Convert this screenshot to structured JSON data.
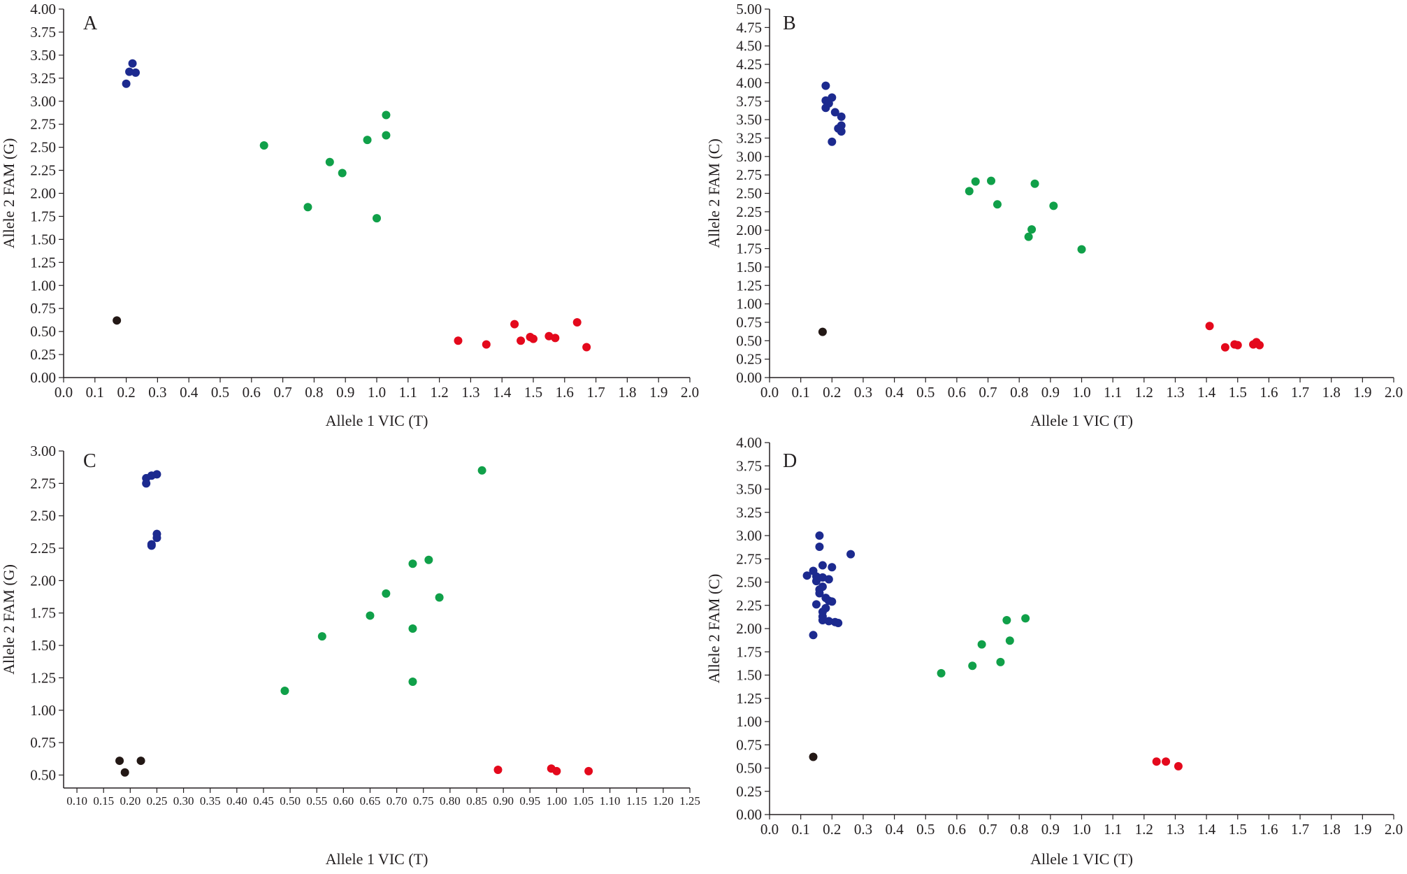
{
  "colors": {
    "axis": "#231f20",
    "blue": "#1c2a8f",
    "green": "#10a049",
    "red": "#e4091c",
    "black": "#231815"
  },
  "chart_data": [
    {
      "type": "scatter",
      "panel_label": "A",
      "xlabel": "Allele 1 VIC (T)",
      "ylabel": "Allele 2 FAM (G)",
      "xlim": [
        0,
        2.0
      ],
      "ylim": [
        0,
        4.0
      ],
      "xticks": [
        "0.0",
        "0.1",
        "0.2",
        "0.3",
        "0.4",
        "0.5",
        "0.6",
        "0.7",
        "0.8",
        "0.9",
        "1.0",
        "1.1",
        "1.2",
        "1.3",
        "1.4",
        "1.5",
        "1.6",
        "1.7",
        "1.8",
        "1.9",
        "2.0"
      ],
      "yticks": [
        "0.00",
        "0.25",
        "0.50",
        "0.75",
        "1.00",
        "1.25",
        "1.50",
        "1.75",
        "2.00",
        "2.25",
        "2.50",
        "2.75",
        "3.00",
        "3.25",
        "3.50",
        "3.75",
        "4.00"
      ],
      "series": [
        {
          "color": "blue",
          "points": [
            [
              0.22,
              3.41
            ],
            [
              0.21,
              3.32
            ],
            [
              0.23,
              3.31
            ],
            [
              0.2,
              3.19
            ]
          ]
        },
        {
          "color": "green",
          "points": [
            [
              1.03,
              2.85
            ],
            [
              1.03,
              2.63
            ],
            [
              0.97,
              2.58
            ],
            [
              0.64,
              2.52
            ],
            [
              0.85,
              2.34
            ],
            [
              0.89,
              2.22
            ],
            [
              0.78,
              1.85
            ],
            [
              1.0,
              1.73
            ]
          ]
        },
        {
          "color": "red",
          "points": [
            [
              1.26,
              0.4
            ],
            [
              1.35,
              0.36
            ],
            [
              1.44,
              0.58
            ],
            [
              1.46,
              0.4
            ],
            [
              1.49,
              0.44
            ],
            [
              1.5,
              0.42
            ],
            [
              1.55,
              0.45
            ],
            [
              1.57,
              0.43
            ],
            [
              1.64,
              0.6
            ],
            [
              1.67,
              0.33
            ]
          ]
        },
        {
          "color": "black",
          "points": [
            [
              0.17,
              0.62
            ]
          ]
        }
      ]
    },
    {
      "type": "scatter",
      "panel_label": "B",
      "xlabel": "Allele 1 VIC (T)",
      "ylabel": "Allele 2 FAM (C)",
      "xlim": [
        0,
        2.0
      ],
      "ylim": [
        0,
        5.0
      ],
      "xticks": [
        "0.0",
        "0.1",
        "0.2",
        "0.3",
        "0.4",
        "0.5",
        "0.6",
        "0.7",
        "0.8",
        "0.9",
        "1.0",
        "1.1",
        "1.2",
        "1.3",
        "1.4",
        "1.5",
        "1.6",
        "1.7",
        "1.8",
        "1.9",
        "2.0"
      ],
      "yticks": [
        "0.00",
        "0.25",
        "0.50",
        "0.75",
        "1.00",
        "1.25",
        "1.50",
        "1.75",
        "2.00",
        "2.25",
        "2.50",
        "2.75",
        "3.00",
        "3.25",
        "3.50",
        "3.75",
        "4.00",
        "4.25",
        "4.50",
        "4.75",
        "5.00"
      ],
      "series": [
        {
          "color": "blue",
          "points": [
            [
              0.18,
              3.96
            ],
            [
              0.2,
              3.8
            ],
            [
              0.18,
              3.76
            ],
            [
              0.19,
              3.72
            ],
            [
              0.18,
              3.66
            ],
            [
              0.21,
              3.6
            ],
            [
              0.23,
              3.54
            ],
            [
              0.23,
              3.42
            ],
            [
              0.22,
              3.38
            ],
            [
              0.23,
              3.34
            ],
            [
              0.2,
              3.2
            ]
          ]
        },
        {
          "color": "green",
          "points": [
            [
              0.66,
              2.66
            ],
            [
              0.71,
              2.67
            ],
            [
              0.85,
              2.63
            ],
            [
              0.64,
              2.53
            ],
            [
              0.73,
              2.35
            ],
            [
              0.91,
              2.33
            ],
            [
              0.84,
              2.01
            ],
            [
              0.83,
              1.91
            ],
            [
              1.0,
              1.74
            ]
          ]
        },
        {
          "color": "red",
          "points": [
            [
              1.41,
              0.7
            ],
            [
              1.46,
              0.41
            ],
            [
              1.49,
              0.45
            ],
            [
              1.5,
              0.44
            ],
            [
              1.55,
              0.45
            ],
            [
              1.56,
              0.48
            ],
            [
              1.57,
              0.44
            ]
          ]
        },
        {
          "color": "black",
          "points": [
            [
              0.17,
              0.62
            ]
          ]
        }
      ]
    },
    {
      "type": "scatter",
      "panel_label": "C",
      "xlabel": "Allele 1 VIC (T)",
      "ylabel": "Allele 2 FAM (G)",
      "xlim": [
        0.075,
        1.25
      ],
      "ylim": [
        0.4,
        3.0
      ],
      "xticks": [
        "0.10",
        "0.15",
        "0.20",
        "0.25",
        "0.30",
        "0.35",
        "0.40",
        "0.45",
        "0.50",
        "0.55",
        "0.60",
        "0.65",
        "0.70",
        "0.75",
        "0.80",
        "0.85",
        "0.90",
        "0.95",
        "1.00",
        "1.05",
        "1.10",
        "1.15",
        "1.20",
        "1.25"
      ],
      "yticks": [
        "0.50",
        "0.75",
        "1.00",
        "1.25",
        "1.50",
        "1.75",
        "2.00",
        "2.25",
        "2.50",
        "2.75",
        "3.00"
      ],
      "series": [
        {
          "color": "blue",
          "points": [
            [
              0.25,
              2.82
            ],
            [
              0.24,
              2.81
            ],
            [
              0.23,
              2.79
            ],
            [
              0.23,
              2.75
            ],
            [
              0.25,
              2.36
            ],
            [
              0.25,
              2.33
            ],
            [
              0.24,
              2.28
            ],
            [
              0.24,
              2.27
            ]
          ]
        },
        {
          "color": "green",
          "points": [
            [
              0.86,
              2.85
            ],
            [
              0.76,
              2.16
            ],
            [
              0.73,
              2.13
            ],
            [
              0.68,
              1.9
            ],
            [
              0.78,
              1.87
            ],
            [
              0.65,
              1.73
            ],
            [
              0.73,
              1.63
            ],
            [
              0.56,
              1.57
            ],
            [
              0.73,
              1.22
            ],
            [
              0.49,
              1.15
            ]
          ]
        },
        {
          "color": "red",
          "points": [
            [
              0.89,
              0.54
            ],
            [
              0.99,
              0.55
            ],
            [
              1.0,
              0.53
            ],
            [
              1.06,
              0.53
            ]
          ]
        },
        {
          "color": "black",
          "points": [
            [
              0.18,
              0.61
            ],
            [
              0.22,
              0.61
            ],
            [
              0.19,
              0.52
            ]
          ]
        }
      ]
    },
    {
      "type": "scatter",
      "panel_label": "D",
      "xlabel": "Allele 1 VIC (T)",
      "ylabel": "Allele 2 FAM (C)",
      "xlim": [
        0,
        2.0
      ],
      "ylim": [
        0,
        4.0
      ],
      "xticks": [
        "0.0",
        "0.1",
        "0.2",
        "0.3",
        "0.4",
        "0.5",
        "0.6",
        "0.7",
        "0.8",
        "0.9",
        "1.0",
        "1.1",
        "1.2",
        "1.3",
        "1.4",
        "1.5",
        "1.6",
        "1.7",
        "1.8",
        "1.9",
        "2.0"
      ],
      "yticks": [
        "0.00",
        "0.25",
        "0.50",
        "0.75",
        "1.00",
        "1.25",
        "1.50",
        "1.75",
        "2.00",
        "2.25",
        "2.50",
        "2.75",
        "3.00",
        "3.25",
        "3.50",
        "3.75",
        "4.00"
      ],
      "series": [
        {
          "color": "blue",
          "points": [
            [
              0.16,
              3.0
            ],
            [
              0.16,
              2.88
            ],
            [
              0.26,
              2.8
            ],
            [
              0.17,
              2.68
            ],
            [
              0.2,
              2.66
            ],
            [
              0.14,
              2.62
            ],
            [
              0.12,
              2.57
            ],
            [
              0.15,
              2.56
            ],
            [
              0.17,
              2.55
            ],
            [
              0.19,
              2.53
            ],
            [
              0.15,
              2.51
            ],
            [
              0.17,
              2.45
            ],
            [
              0.16,
              2.42
            ],
            [
              0.16,
              2.38
            ],
            [
              0.18,
              2.33
            ],
            [
              0.19,
              2.3
            ],
            [
              0.2,
              2.29
            ],
            [
              0.15,
              2.26
            ],
            [
              0.18,
              2.22
            ],
            [
              0.17,
              2.18
            ],
            [
              0.17,
              2.13
            ],
            [
              0.17,
              2.09
            ],
            [
              0.19,
              2.08
            ],
            [
              0.21,
              2.07
            ],
            [
              0.22,
              2.06
            ],
            [
              0.14,
              1.93
            ]
          ]
        },
        {
          "color": "green",
          "points": [
            [
              0.82,
              2.11
            ],
            [
              0.76,
              2.09
            ],
            [
              0.77,
              1.87
            ],
            [
              0.68,
              1.83
            ],
            [
              0.65,
              1.6
            ],
            [
              0.74,
              1.64
            ],
            [
              0.55,
              1.52
            ]
          ]
        },
        {
          "color": "red",
          "points": [
            [
              1.24,
              0.57
            ],
            [
              1.27,
              0.57
            ],
            [
              1.31,
              0.52
            ]
          ]
        },
        {
          "color": "black",
          "points": [
            [
              0.14,
              0.62
            ]
          ]
        }
      ]
    }
  ]
}
